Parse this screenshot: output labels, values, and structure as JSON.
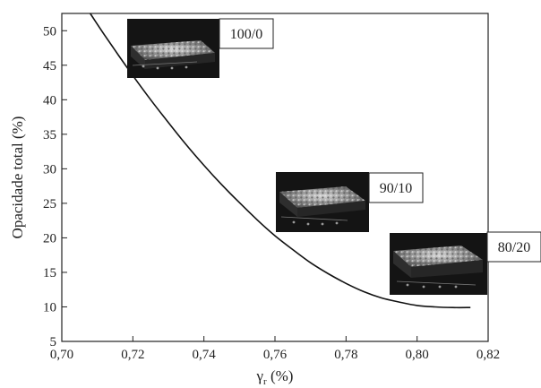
{
  "chart_data": {
    "type": "line",
    "xlabel": "γ",
    "xlabel_subscript": "r",
    "xlabel_unit": " (%)",
    "ylabel": "Opacidade total (%)",
    "xlim": [
      0.7,
      0.82
    ],
    "ylim": [
      5,
      52.5
    ],
    "x_ticks": [
      0.7,
      0.72,
      0.74,
      0.76,
      0.78,
      0.8,
      0.82
    ],
    "x_tick_labels": [
      "0,70",
      "0,72",
      "0,74",
      "0,76",
      "0,78",
      "0,80",
      "0,82"
    ],
    "y_ticks": [
      5,
      10,
      15,
      20,
      25,
      30,
      35,
      40,
      45,
      50
    ],
    "y_tick_labels": [
      "5",
      "10",
      "15",
      "20",
      "25",
      "30",
      "35",
      "40",
      "45",
      "50"
    ],
    "grid": false,
    "series": [
      {
        "x": [
          0.708,
          0.712,
          0.716,
          0.72,
          0.725,
          0.73,
          0.735,
          0.74,
          0.745,
          0.75,
          0.755,
          0.76,
          0.765,
          0.77,
          0.775,
          0.78,
          0.785,
          0.79,
          0.795,
          0.8,
          0.805,
          0.81,
          0.815
        ],
        "y": [
          52.5,
          49.4,
          46.4,
          43.5,
          40.0,
          36.7,
          33.5,
          30.5,
          27.7,
          25.1,
          22.6,
          20.3,
          18.3,
          16.4,
          14.8,
          13.4,
          12.2,
          11.3,
          10.7,
          10.2,
          10.0,
          9.9,
          9.9
        ]
      }
    ],
    "annotations": [
      {
        "label": "100/0",
        "kind": "surface-image"
      },
      {
        "label": "90/10",
        "kind": "surface-image"
      },
      {
        "label": "80/20",
        "kind": "surface-image"
      }
    ]
  }
}
